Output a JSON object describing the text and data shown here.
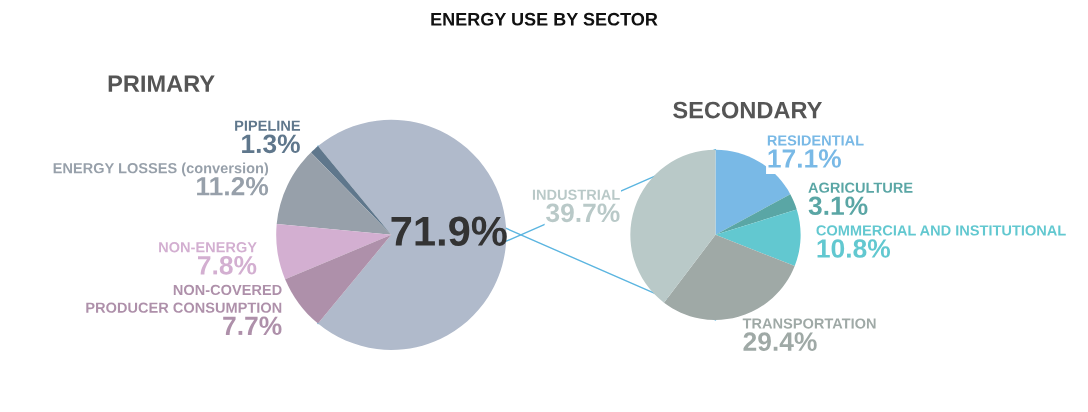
{
  "chart_data": [
    {
      "type": "pie",
      "title": "PRIMARY",
      "annotations": [
        "ENERGY USE BY SECTOR"
      ],
      "categories": [
        null,
        "PIPELINE",
        "ENERGY LOSSES (conversion)",
        "NON-ENERGY",
        "NON-COVERED\nPRODUCER CONSUMPTION"
      ],
      "values": [
        71.9,
        1.3,
        11.2,
        7.8,
        7.7
      ],
      "value_labels": [
        "71.9%",
        "1.3%",
        "11.2%",
        "7.8%",
        "7.7%"
      ],
      "colors": [
        "#b0bacb",
        "#5f778c",
        "#97a0aa",
        "#d3afd1",
        "#ae90aa"
      ]
    },
    {
      "type": "pie",
      "title": "SECONDARY",
      "categories": [
        "RESIDENTIAL",
        "AGRICULTURE",
        "COMMERCIAL AND INSTITUTIONAL",
        "TRANSPORTATION",
        "INDUSTRIAL"
      ],
      "values": [
        17.1,
        3.1,
        10.8,
        29.4,
        39.7
      ],
      "value_labels": [
        "17.1%",
        "3.1%",
        "10.8%",
        "29.4%",
        "39.7%"
      ],
      "colors": [
        "#79b9e6",
        "#5aa6a5",
        "#62c8d0",
        "#9fa9a6",
        "#b9c9c8"
      ]
    }
  ]
}
